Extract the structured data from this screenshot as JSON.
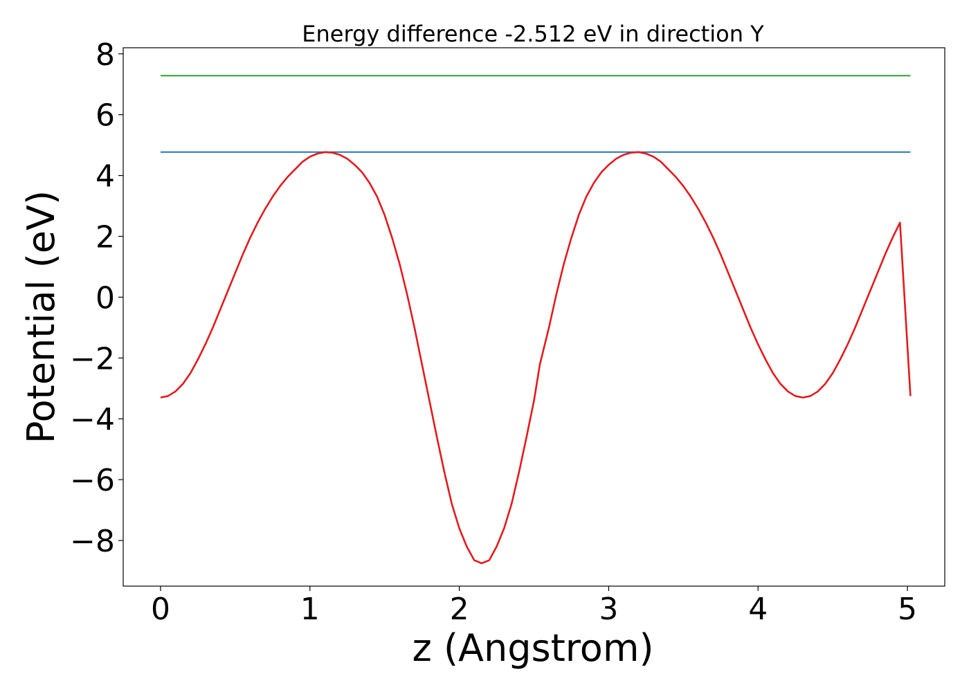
{
  "chart_data": {
    "type": "line",
    "title": "Energy difference -2.512 eV in direction Y",
    "xlabel": "z (Angstrom)",
    "ylabel": "Potential (eV)",
    "xlim": [
      -0.25,
      5.25
    ],
    "ylim": [
      -9.5,
      8.2
    ],
    "x_ticks": [
      0,
      1,
      2,
      3,
      4,
      5
    ],
    "x_tick_labels": [
      "0",
      "1",
      "2",
      "3",
      "4",
      "5"
    ],
    "y_ticks": [
      -8,
      -6,
      -4,
      -2,
      0,
      2,
      4,
      6,
      8
    ],
    "y_tick_labels": [
      "−8",
      "−6",
      "−4",
      "−2",
      "0",
      "2",
      "4",
      "6",
      "8"
    ],
    "grid": false,
    "series": [
      {
        "color": "#2ca02c",
        "x": [
          0,
          5.02
        ],
        "y": [
          7.28,
          7.28
        ]
      },
      {
        "color": "#1f77b4",
        "x": [
          0,
          5.02
        ],
        "y": [
          4.77,
          4.77
        ]
      },
      {
        "color": "#e31a1c",
        "x": [
          0,
          0.05,
          0.1,
          0.15,
          0.2,
          0.25,
          0.3,
          0.35,
          0.4,
          0.45,
          0.5,
          0.55,
          0.6,
          0.65,
          0.7,
          0.75,
          0.8,
          0.85,
          0.9,
          0.95,
          1.0,
          1.05,
          1.1,
          1.15,
          1.2,
          1.25,
          1.3,
          1.35,
          1.4,
          1.45,
          1.5,
          1.55,
          1.6,
          1.65,
          1.7,
          1.75,
          1.8,
          1.85,
          1.9,
          1.95,
          2.0,
          2.05,
          2.1,
          2.15,
          2.2,
          2.25,
          2.3,
          2.35,
          2.4,
          2.45,
          2.5,
          2.54,
          2.6,
          2.65,
          2.7,
          2.75,
          2.8,
          2.85,
          2.9,
          2.95,
          3.0,
          3.05,
          3.1,
          3.15,
          3.2,
          3.25,
          3.3,
          3.35,
          3.4,
          3.45,
          3.5,
          3.55,
          3.6,
          3.65,
          3.7,
          3.75,
          3.8,
          3.85,
          3.9,
          3.95,
          4.0,
          4.05,
          4.1,
          4.15,
          4.2,
          4.25,
          4.3,
          4.35,
          4.4,
          4.45,
          4.5,
          4.55,
          4.6,
          4.65,
          4.7,
          4.75,
          4.8,
          4.85,
          4.9,
          4.95,
          5.02
        ],
        "y": [
          -3.3,
          -3.25,
          -3.1,
          -2.85,
          -2.5,
          -2.05,
          -1.55,
          -1.0,
          -0.4,
          0.2,
          0.8,
          1.4,
          1.95,
          2.45,
          2.9,
          3.3,
          3.65,
          3.95,
          4.2,
          4.45,
          4.62,
          4.72,
          4.77,
          4.75,
          4.68,
          4.55,
          4.35,
          4.1,
          3.75,
          3.3,
          2.7,
          1.95,
          1.1,
          0.1,
          -1.0,
          -2.2,
          -3.4,
          -4.6,
          -5.75,
          -6.8,
          -7.6,
          -8.2,
          -8.65,
          -8.75,
          -8.65,
          -8.2,
          -7.6,
          -6.8,
          -5.75,
          -4.6,
          -3.4,
          -2.2,
          -1.0,
          0.1,
          1.1,
          1.95,
          2.7,
          3.3,
          3.75,
          4.1,
          4.35,
          4.55,
          4.68,
          4.75,
          4.77,
          4.72,
          4.62,
          4.45,
          4.2,
          3.95,
          3.65,
          3.3,
          2.9,
          2.45,
          1.95,
          1.4,
          0.8,
          0.2,
          -0.4,
          -1.0,
          -1.55,
          -2.05,
          -2.5,
          -2.85,
          -3.1,
          -3.25,
          -3.3,
          -3.25,
          -3.1,
          -2.85,
          -2.5,
          -2.05,
          -1.55,
          -1.0,
          -0.4,
          0.2,
          0.8,
          1.4,
          1.95,
          2.45,
          -3.25
        ]
      }
    ]
  }
}
